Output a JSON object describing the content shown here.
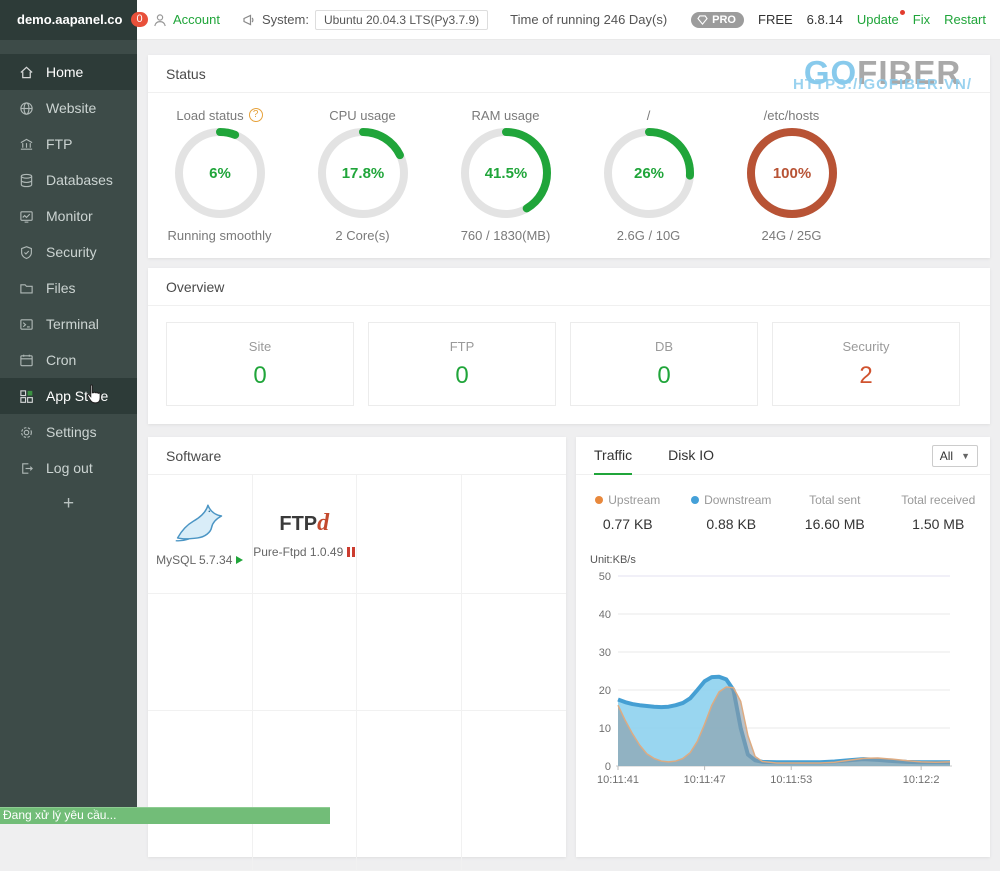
{
  "colors": {
    "accent": "#20a53a",
    "danger": "#d0532f",
    "badge": "#e8503a",
    "toast": "#72bd78",
    "upstream_dot": "#e8883c",
    "downstream_dot": "#44a0d8"
  },
  "topbar": {
    "logo_text": "demo.aapanel.co",
    "logo_badge": "0",
    "account": "Account",
    "system_label": "System:",
    "system_value": "Ubuntu 20.04.3 LTS(Py3.7.9)",
    "uptime": "Time of running 246 Day(s)",
    "pro_badge": "PRO",
    "plan": "FREE",
    "version": "6.8.14",
    "update": "Update",
    "fix": "Fix",
    "restart": "Restart"
  },
  "sidebar": {
    "items": [
      {
        "label": "Home"
      },
      {
        "label": "Website"
      },
      {
        "label": "FTP"
      },
      {
        "label": "Databases"
      },
      {
        "label": "Monitor"
      },
      {
        "label": "Security"
      },
      {
        "label": "Files"
      },
      {
        "label": "Terminal"
      },
      {
        "label": "Cron"
      },
      {
        "label": "App Store"
      },
      {
        "label": "Settings"
      },
      {
        "label": "Log out"
      }
    ],
    "add_label": "+"
  },
  "status": {
    "title": "Status",
    "gauges": [
      {
        "label": "Load status",
        "value": "6%",
        "percent": 6,
        "sub": "Running smoothly",
        "color": "#20a53a"
      },
      {
        "label": "CPU usage",
        "value": "17.8%",
        "percent": 17.8,
        "sub": "2 Core(s)",
        "color": "#20a53a"
      },
      {
        "label": "RAM usage",
        "value": "41.5%",
        "percent": 41.5,
        "sub": "760 / 1830(MB)",
        "color": "#20a53a"
      },
      {
        "label": "/",
        "value": "26%",
        "percent": 26,
        "sub": "2.6G / 10G",
        "color": "#20a53a"
      },
      {
        "label": "/etc/hosts",
        "value": "100%",
        "percent": 100,
        "sub": "24G / 25G",
        "color": "#b85335"
      }
    ]
  },
  "overview": {
    "title": "Overview",
    "cards": [
      {
        "label": "Site",
        "value": "0",
        "color": "#20a53a"
      },
      {
        "label": "FTP",
        "value": "0",
        "color": "#20a53a"
      },
      {
        "label": "DB",
        "value": "0",
        "color": "#20a53a"
      },
      {
        "label": "Security",
        "value": "2",
        "color": "#d0532f"
      }
    ]
  },
  "software": {
    "title": "Software",
    "apps": [
      {
        "name": "MySQL 5.7.34",
        "status": "running"
      },
      {
        "name": "Pure-Ftpd 1.0.49",
        "status": "stopped",
        "logo_text": "FTP",
        "logo_accent": "d"
      }
    ]
  },
  "traffic": {
    "tabs": [
      "Traffic",
      "Disk IO"
    ],
    "range_select": "All",
    "stats": [
      {
        "label": "Upstream",
        "value": "0.77 KB"
      },
      {
        "label": "Downstream",
        "value": "0.88 KB"
      },
      {
        "label": "Total sent",
        "value": "16.60 MB"
      },
      {
        "label": "Total received",
        "value": "1.50 MB"
      }
    ],
    "unit_label": "Unit:KB/s"
  },
  "chart_data": {
    "type": "area",
    "title": "Traffic",
    "ylabel": "Unit:KB/s",
    "ylim": [
      0,
      50
    ],
    "yticks": [
      0,
      10,
      20,
      30,
      40,
      50
    ],
    "xlim": [
      0,
      23
    ],
    "xtick_positions": [
      0,
      6,
      12,
      21
    ],
    "xtick_labels": [
      "10:11:41",
      "10:11:47",
      "10:11:53",
      "10:12:2"
    ],
    "x_seconds": [
      0,
      0.5,
      1,
      1.5,
      2,
      2.5,
      3,
      3.5,
      4,
      4.5,
      5,
      5.5,
      6,
      6.5,
      7,
      7.5,
      8,
      8.5,
      9,
      9.5,
      10,
      11,
      12,
      13,
      14,
      15,
      16,
      17,
      18,
      19,
      20,
      21,
      22,
      23
    ],
    "series": [
      {
        "name": "Downstream",
        "stroke": "#459fd3",
        "stroke_width": 4,
        "fill": "#8ed2ee",
        "fill_opacity": 0.9,
        "values": [
          17.5,
          16.8,
          16.3,
          16,
          15.8,
          15.6,
          15.5,
          15.6,
          16,
          16.6,
          17.8,
          20,
          22.3,
          23.4,
          23.5,
          22.8,
          20,
          10,
          3,
          1.5,
          1.1,
          1,
          1,
          1,
          1,
          1.2,
          1.5,
          1.8,
          1.6,
          1.3,
          1.1,
          1,
          1,
          1
        ]
      },
      {
        "name": "Upstream",
        "stroke": "#ddab82",
        "stroke_width": 1.5,
        "fill": "#8c9aa4",
        "fill_opacity": 0.6,
        "values": [
          16,
          12,
          8.5,
          5.5,
          3.2,
          2,
          1.3,
          1.1,
          1.3,
          2,
          3.5,
          6.5,
          11,
          16,
          19.5,
          20.8,
          20.6,
          17,
          8,
          2.5,
          1.2,
          0.8,
          0.8,
          0.8,
          0.8,
          1,
          1.5,
          2,
          2.1,
          1.8,
          1.4,
          1.1,
          1,
          1.1
        ]
      }
    ],
    "legend_position": "top",
    "grid": true
  },
  "watermark": {
    "go": "GO",
    "fiber": "FIBER",
    "url": "HTTPS://GOFIBER.VN/"
  },
  "toast": {
    "message": "Đang xử lý yêu cầu..."
  }
}
